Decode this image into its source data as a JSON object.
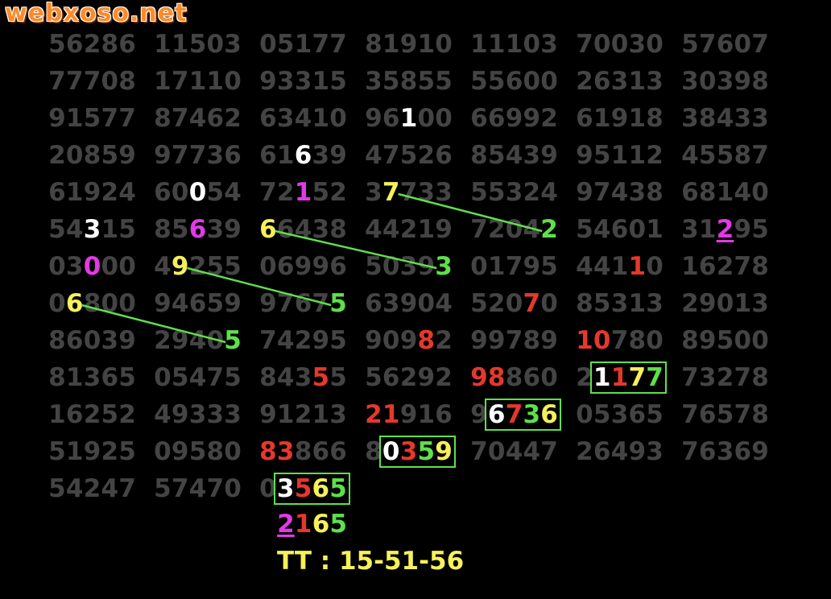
{
  "watermark": "webxoso.net",
  "colors": {
    "gray": "#444444",
    "white": "#ffffff",
    "magenta": "#e23ae6",
    "yellow": "#f6f05a",
    "green": "#5ee04a",
    "red": "#e5382c",
    "box": "#5ee04a",
    "line": "#5ee04a",
    "watermark": "#ff8a2a"
  },
  "grid": {
    "rows": [
      [
        "56286",
        "11503",
        "05177",
        "81910",
        "11103",
        "70030",
        "57607"
      ],
      [
        "77708",
        "17110",
        "93315",
        "35855",
        "55600",
        "26313",
        "30398"
      ],
      [
        "91577",
        "87462",
        "63410",
        "96100",
        "66992",
        "61918",
        "38433"
      ],
      [
        "20859",
        "97736",
        "61639",
        "47526",
        "85439",
        "95112",
        "45587"
      ],
      [
        "61924",
        "60054",
        "72152",
        "37733",
        "55324",
        "97438",
        "68140"
      ],
      [
        "54315",
        "85639",
        "66438",
        "44219",
        "72042",
        "54601",
        "31295"
      ],
      [
        "03000",
        "49255",
        "06996",
        "50393",
        "01795",
        "44110",
        "16278"
      ],
      [
        "06800",
        "94659",
        "97675",
        "63904",
        "52070",
        "85313",
        "29013"
      ],
      [
        "86039",
        "29405",
        "74295",
        "90982",
        "99789",
        "10780",
        "89500"
      ],
      [
        "81365",
        "05475",
        "84355",
        "56292",
        "98860",
        "21177",
        "73278"
      ],
      [
        "16252",
        "49333",
        "91213",
        "21916",
        "96736",
        "05365",
        "76578"
      ],
      [
        "51925",
        "09580",
        "83866",
        "80359",
        "70447",
        "26493",
        "76369"
      ],
      [
        "54247",
        "57470",
        "03565"
      ]
    ],
    "highlights": [
      {
        "row": 2,
        "col": 3,
        "digit": 2,
        "color": "white"
      },
      {
        "row": 3,
        "col": 2,
        "digit": 2,
        "color": "white"
      },
      {
        "row": 4,
        "col": 1,
        "digit": 2,
        "color": "white"
      },
      {
        "row": 4,
        "col": 2,
        "digit": 2,
        "color": "magenta"
      },
      {
        "row": 4,
        "col": 3,
        "digit": 1,
        "color": "yellow"
      },
      {
        "row": 5,
        "col": 0,
        "digit": 2,
        "color": "white"
      },
      {
        "row": 5,
        "col": 1,
        "digit": 2,
        "color": "magenta"
      },
      {
        "row": 5,
        "col": 2,
        "digit": 0,
        "color": "yellow"
      },
      {
        "row": 5,
        "col": 4,
        "digit": 4,
        "color": "green"
      },
      {
        "row": 5,
        "col": 6,
        "digit": 2,
        "color": "magenta",
        "underline": true
      },
      {
        "row": 6,
        "col": 0,
        "digit": 2,
        "color": "magenta"
      },
      {
        "row": 6,
        "col": 1,
        "digit": 1,
        "color": "yellow"
      },
      {
        "row": 6,
        "col": 3,
        "digit": 4,
        "color": "green"
      },
      {
        "row": 6,
        "col": 5,
        "digit": 3,
        "color": "red"
      },
      {
        "row": 7,
        "col": 0,
        "digit": 1,
        "color": "yellow"
      },
      {
        "row": 7,
        "col": 2,
        "digit": 4,
        "color": "green"
      },
      {
        "row": 7,
        "col": 4,
        "digit": 3,
        "color": "red"
      },
      {
        "row": 8,
        "col": 1,
        "digit": 4,
        "color": "green"
      },
      {
        "row": 8,
        "col": 3,
        "digit": 3,
        "color": "red"
      },
      {
        "row": 8,
        "col": 5,
        "digit": 0,
        "color": "red"
      },
      {
        "row": 8,
        "col": 5,
        "digit": 1,
        "color": "red"
      },
      {
        "row": 9,
        "col": 2,
        "digit": 3,
        "color": "red"
      },
      {
        "row": 9,
        "col": 4,
        "digit": 0,
        "color": "red"
      },
      {
        "row": 9,
        "col": 4,
        "digit": 1,
        "color": "red"
      },
      {
        "row": 9,
        "col": 5,
        "digit": 1,
        "color": "white"
      },
      {
        "row": 9,
        "col": 5,
        "digit": 2,
        "color": "red"
      },
      {
        "row": 9,
        "col": 5,
        "digit": 3,
        "color": "yellow"
      },
      {
        "row": 9,
        "col": 5,
        "digit": 4,
        "color": "green"
      },
      {
        "row": 10,
        "col": 3,
        "digit": 0,
        "color": "red"
      },
      {
        "row": 10,
        "col": 3,
        "digit": 1,
        "color": "red"
      },
      {
        "row": 10,
        "col": 4,
        "digit": 1,
        "color": "white"
      },
      {
        "row": 10,
        "col": 4,
        "digit": 2,
        "color": "red"
      },
      {
        "row": 10,
        "col": 4,
        "digit": 3,
        "color": "green"
      },
      {
        "row": 10,
        "col": 4,
        "digit": 4,
        "color": "yellow"
      },
      {
        "row": 11,
        "col": 2,
        "digit": 0,
        "color": "red"
      },
      {
        "row": 11,
        "col": 2,
        "digit": 1,
        "color": "red"
      },
      {
        "row": 11,
        "col": 3,
        "digit": 1,
        "color": "white"
      },
      {
        "row": 11,
        "col": 3,
        "digit": 2,
        "color": "red"
      },
      {
        "row": 11,
        "col": 3,
        "digit": 3,
        "color": "green"
      },
      {
        "row": 11,
        "col": 3,
        "digit": 4,
        "color": "yellow"
      },
      {
        "row": 12,
        "col": 2,
        "digit": 1,
        "color": "white"
      },
      {
        "row": 12,
        "col": 2,
        "digit": 2,
        "color": "red"
      },
      {
        "row": 12,
        "col": 2,
        "digit": 3,
        "color": "yellow"
      },
      {
        "row": 12,
        "col": 2,
        "digit": 4,
        "color": "green"
      }
    ],
    "boxes": [
      {
        "row": 9,
        "col": 5,
        "from": 1,
        "to": 4
      },
      {
        "row": 10,
        "col": 4,
        "from": 1,
        "to": 4
      },
      {
        "row": 11,
        "col": 3,
        "from": 1,
        "to": 4
      },
      {
        "row": 12,
        "col": 2,
        "from": 1,
        "to": 4
      }
    ],
    "links": [
      {
        "from": {
          "row": 4,
          "col": 3,
          "digit": 1
        },
        "to": {
          "row": 5,
          "col": 4,
          "digit": 4
        }
      },
      {
        "from": {
          "row": 5,
          "col": 2,
          "digit": 0
        },
        "to": {
          "row": 6,
          "col": 3,
          "digit": 4
        }
      },
      {
        "from": {
          "row": 6,
          "col": 1,
          "digit": 1
        },
        "to": {
          "row": 7,
          "col": 2,
          "digit": 4
        }
      },
      {
        "from": {
          "row": 7,
          "col": 0,
          "digit": 1
        },
        "to": {
          "row": 8,
          "col": 1,
          "digit": 4
        }
      }
    ]
  },
  "result": {
    "digits": [
      {
        "d": "2",
        "color": "magenta",
        "underline": true
      },
      {
        "d": "1",
        "color": "red"
      },
      {
        "d": "6",
        "color": "yellow"
      },
      {
        "d": "5",
        "color": "green"
      }
    ],
    "tt": "TT : 15-51-56"
  }
}
